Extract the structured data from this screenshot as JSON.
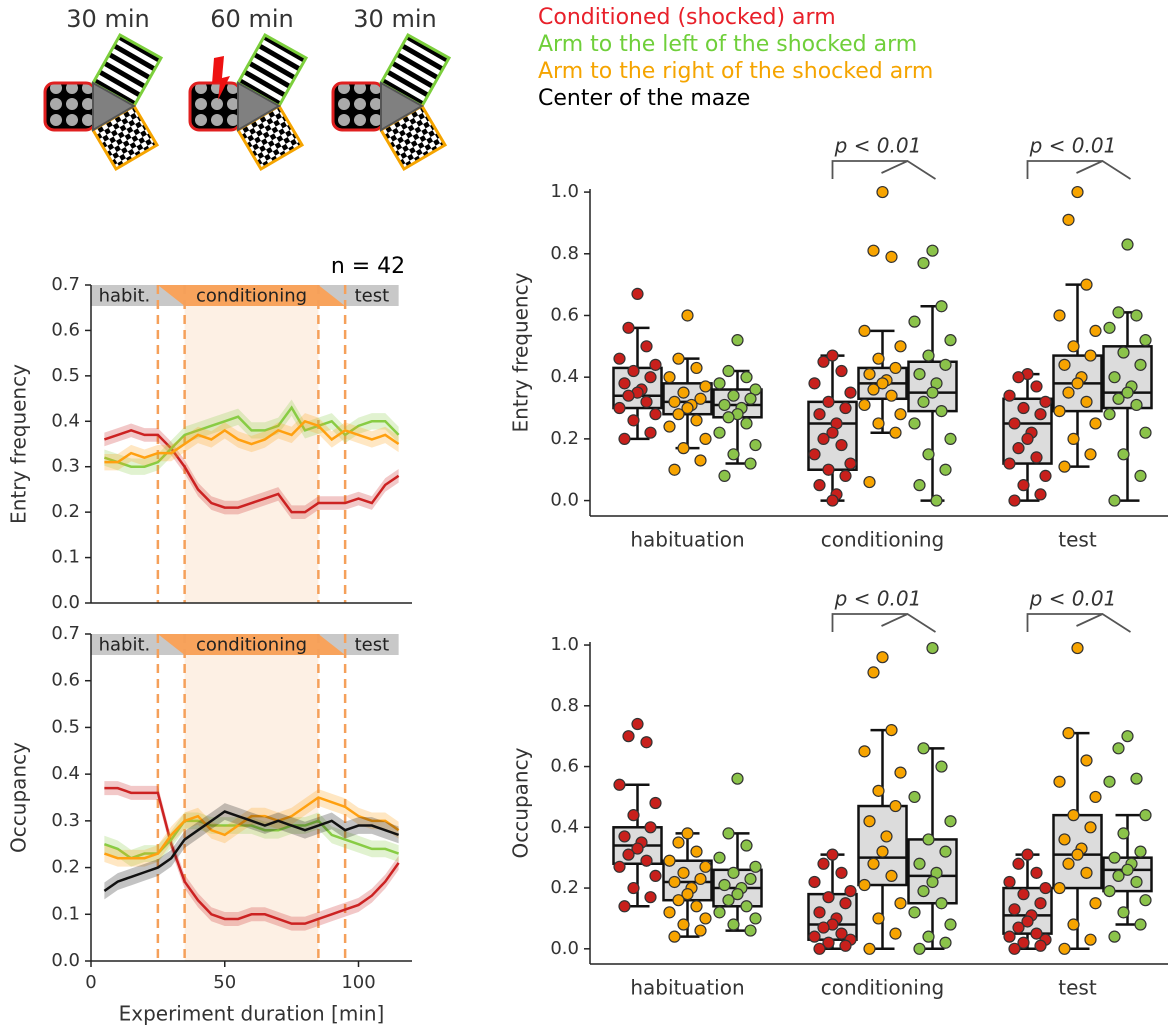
{
  "schematic": {
    "durations": [
      "30 min",
      "60 min",
      "30 min"
    ]
  },
  "legend": [
    {
      "label": "Conditioned (shocked) arm",
      "color": "#e8202a"
    },
    {
      "label": "Arm to the left of the shocked arm",
      "color": "#6fcf3a"
    },
    {
      "label": "Arm to the right of the shocked arm",
      "color": "#f5a400"
    },
    {
      "label": "Center of the maze",
      "color": "#000000"
    }
  ],
  "chart_data": [
    {
      "type": "line",
      "ylabel": "Entry frequency",
      "annotation": "n = 42",
      "phase_labels": [
        "habit.",
        "conditioning",
        "test"
      ],
      "boundaries": [
        25,
        35,
        85,
        95
      ],
      "x": [
        5,
        10,
        15,
        20,
        25,
        30,
        35,
        40,
        45,
        50,
        55,
        60,
        65,
        70,
        75,
        80,
        85,
        90,
        95,
        100,
        105,
        110,
        115
      ],
      "xlim": [
        0,
        120
      ],
      "ylim": [
        0,
        0.7
      ],
      "yticks": [
        {
          "value": 0,
          "label": "0.0"
        },
        0.1,
        0.2,
        0.3,
        0.4,
        0.5,
        0.6,
        0.7
      ],
      "series": [
        {
          "color": "#cc2222",
          "error": 0.015,
          "values": [
            0.36,
            0.37,
            0.38,
            0.37,
            0.37,
            0.34,
            0.3,
            0.25,
            0.22,
            0.21,
            0.21,
            0.22,
            0.23,
            0.24,
            0.2,
            0.2,
            0.22,
            0.22,
            0.22,
            0.23,
            0.22,
            0.26,
            0.28
          ]
        },
        {
          "color": "#88cc44",
          "error": 0.018,
          "values": [
            0.32,
            0.31,
            0.3,
            0.3,
            0.31,
            0.34,
            0.37,
            0.38,
            0.39,
            0.4,
            0.41,
            0.38,
            0.38,
            0.39,
            0.43,
            0.38,
            0.39,
            0.4,
            0.37,
            0.39,
            0.4,
            0.4,
            0.37
          ]
        },
        {
          "color": "#ffa010",
          "error": 0.018,
          "values": [
            0.31,
            0.31,
            0.33,
            0.32,
            0.33,
            0.33,
            0.35,
            0.37,
            0.36,
            0.38,
            0.36,
            0.35,
            0.36,
            0.38,
            0.37,
            0.4,
            0.39,
            0.36,
            0.38,
            0.37,
            0.36,
            0.37,
            0.35
          ]
        }
      ]
    },
    {
      "type": "line",
      "ylabel": "Occupancy",
      "xlabel": "Experiment duration [min]",
      "phase_labels": [
        "habit.",
        "conditioning",
        "test"
      ],
      "boundaries": [
        25,
        35,
        85,
        95
      ],
      "x": [
        5,
        10,
        15,
        20,
        25,
        30,
        35,
        40,
        45,
        50,
        55,
        60,
        65,
        70,
        75,
        80,
        85,
        90,
        95,
        100,
        105,
        110,
        115
      ],
      "xlim": [
        0,
        120
      ],
      "xticks": [
        0,
        50,
        100
      ],
      "ylim": [
        0,
        0.7
      ],
      "yticks": [
        {
          "value": 0,
          "label": "0.0"
        },
        0.1,
        0.2,
        0.3,
        0.4,
        0.5,
        0.6,
        0.7
      ],
      "series": [
        {
          "color": "#cc2222",
          "error": 0.015,
          "values": [
            0.37,
            0.37,
            0.36,
            0.36,
            0.36,
            0.25,
            0.17,
            0.13,
            0.1,
            0.09,
            0.09,
            0.1,
            0.1,
            0.09,
            0.08,
            0.08,
            0.09,
            0.1,
            0.11,
            0.12,
            0.14,
            0.17,
            0.21
          ]
        },
        {
          "color": "#88cc44",
          "error": 0.018,
          "values": [
            0.25,
            0.24,
            0.22,
            0.23,
            0.23,
            0.26,
            0.3,
            0.3,
            0.29,
            0.29,
            0.29,
            0.29,
            0.28,
            0.28,
            0.29,
            0.29,
            0.3,
            0.27,
            0.26,
            0.25,
            0.24,
            0.24,
            0.23
          ]
        },
        {
          "color": "#ffa010",
          "error": 0.018,
          "values": [
            0.23,
            0.22,
            0.22,
            0.22,
            0.23,
            0.27,
            0.3,
            0.31,
            0.28,
            0.27,
            0.29,
            0.31,
            0.31,
            0.3,
            0.31,
            0.33,
            0.35,
            0.34,
            0.33,
            0.31,
            0.3,
            0.3,
            0.28
          ]
        },
        {
          "color": "#111111",
          "error": 0.018,
          "values": [
            0.15,
            0.17,
            0.18,
            0.19,
            0.2,
            0.22,
            0.26,
            0.28,
            0.3,
            0.32,
            0.31,
            0.3,
            0.29,
            0.3,
            0.29,
            0.28,
            0.29,
            0.3,
            0.28,
            0.29,
            0.29,
            0.28,
            0.27
          ]
        }
      ]
    },
    {
      "type": "box",
      "ylabel": "Entry frequency",
      "categories": [
        "habituation",
        "conditioning",
        "test"
      ],
      "significance": [
        null,
        "p < 0.01",
        "p < 0.01"
      ],
      "ylim": [
        -0.05,
        1.01
      ],
      "yticks": [
        {
          "value": 0,
          "label": "0.0"
        },
        0.2,
        0.4,
        0.6,
        0.8,
        {
          "value": 1,
          "label": "1.0"
        }
      ],
      "series": [
        {
          "color": "#c8201c",
          "whislo": [
            0.2,
            0.0,
            0.0
          ],
          "q1": [
            0.3,
            0.1,
            0.12
          ],
          "med": [
            0.34,
            0.25,
            0.25
          ],
          "q3": [
            0.43,
            0.32,
            0.33
          ],
          "whishi": [
            0.56,
            0.47,
            0.41
          ],
          "points": [
            [
              0.67,
              0.56,
              0.5,
              0.46,
              0.44,
              0.42,
              0.4,
              0.38,
              0.36,
              0.35,
              0.34,
              0.32,
              0.3,
              0.28,
              0.26,
              0.22,
              0.2
            ],
            [
              0.47,
              0.45,
              0.42,
              0.38,
              0.35,
              0.32,
              0.3,
              0.28,
              0.25,
              0.22,
              0.2,
              0.18,
              0.15,
              0.12,
              0.1,
              0.08,
              0.05,
              0.02,
              0.0
            ],
            [
              0.41,
              0.4,
              0.37,
              0.34,
              0.32,
              0.3,
              0.28,
              0.25,
              0.22,
              0.2,
              0.17,
              0.14,
              0.12,
              0.08,
              0.05,
              0.02,
              0.0
            ]
          ]
        },
        {
          "color": "#f7a400",
          "whislo": [
            0.17,
            0.22,
            0.11
          ],
          "q1": [
            0.28,
            0.33,
            0.29
          ],
          "med": [
            0.32,
            0.38,
            0.38
          ],
          "q3": [
            0.38,
            0.43,
            0.47
          ],
          "whishi": [
            0.46,
            0.55,
            0.7
          ],
          "points": [
            [
              0.6,
              0.46,
              0.43,
              0.4,
              0.37,
              0.35,
              0.33,
              0.32,
              0.31,
              0.3,
              0.28,
              0.26,
              0.24,
              0.2,
              0.17,
              0.13,
              0.1
            ],
            [
              1.0,
              0.81,
              0.79,
              0.55,
              0.5,
              0.46,
              0.43,
              0.41,
              0.39,
              0.38,
              0.36,
              0.34,
              0.31,
              0.28,
              0.25,
              0.22,
              0.06
            ],
            [
              1.0,
              0.91,
              0.7,
              0.6,
              0.55,
              0.5,
              0.47,
              0.44,
              0.4,
              0.38,
              0.35,
              0.32,
              0.29,
              0.25,
              0.2,
              0.15,
              0.11
            ]
          ]
        },
        {
          "color": "#8bc34a",
          "whislo": [
            0.12,
            0.0,
            0.0
          ],
          "q1": [
            0.27,
            0.29,
            0.3
          ],
          "med": [
            0.31,
            0.35,
            0.35
          ],
          "q3": [
            0.36,
            0.45,
            0.5
          ],
          "whishi": [
            0.42,
            0.63,
            0.61
          ],
          "points": [
            [
              0.52,
              0.42,
              0.4,
              0.38,
              0.36,
              0.34,
              0.33,
              0.31,
              0.3,
              0.28,
              0.27,
              0.25,
              0.22,
              0.18,
              0.15,
              0.12,
              0.08
            ],
            [
              0.81,
              0.77,
              0.63,
              0.58,
              0.52,
              0.47,
              0.44,
              0.41,
              0.38,
              0.35,
              0.32,
              0.29,
              0.25,
              0.2,
              0.15,
              0.1,
              0.05,
              0.0
            ],
            [
              0.83,
              0.61,
              0.6,
              0.56,
              0.52,
              0.48,
              0.44,
              0.4,
              0.37,
              0.35,
              0.33,
              0.31,
              0.28,
              0.22,
              0.15,
              0.08,
              0.0
            ]
          ]
        }
      ]
    },
    {
      "type": "box",
      "ylabel": "Occupancy",
      "categories": [
        "habituation",
        "conditioning",
        "test"
      ],
      "significance": [
        null,
        "p < 0.01",
        "p < 0.01"
      ],
      "ylim": [
        -0.05,
        1.01
      ],
      "yticks": [
        {
          "value": 0,
          "label": "0.0"
        },
        0.2,
        0.4,
        0.6,
        0.8,
        {
          "value": 1,
          "label": "1.0"
        }
      ],
      "series": [
        {
          "color": "#c8201c",
          "whislo": [
            0.14,
            0.0,
            0.0
          ],
          "q1": [
            0.28,
            0.03,
            0.05
          ],
          "med": [
            0.34,
            0.08,
            0.11
          ],
          "q3": [
            0.4,
            0.18,
            0.2
          ],
          "whishi": [
            0.54,
            0.31,
            0.31
          ],
          "points": [
            [
              0.74,
              0.7,
              0.68,
              0.54,
              0.48,
              0.44,
              0.4,
              0.37,
              0.35,
              0.33,
              0.31,
              0.29,
              0.27,
              0.24,
              0.2,
              0.17,
              0.14
            ],
            [
              0.31,
              0.28,
              0.25,
              0.22,
              0.19,
              0.17,
              0.15,
              0.12,
              0.1,
              0.08,
              0.07,
              0.05,
              0.04,
              0.03,
              0.02,
              0.01,
              0.0
            ],
            [
              0.31,
              0.28,
              0.25,
              0.22,
              0.2,
              0.18,
              0.15,
              0.13,
              0.11,
              0.09,
              0.07,
              0.05,
              0.04,
              0.03,
              0.02,
              0.01,
              0.0
            ]
          ]
        },
        {
          "color": "#f7a400",
          "whislo": [
            0.04,
            0.0,
            0.0
          ],
          "q1": [
            0.16,
            0.21,
            0.2
          ],
          "med": [
            0.22,
            0.3,
            0.31
          ],
          "q3": [
            0.29,
            0.47,
            0.44
          ],
          "whishi": [
            0.38,
            0.72,
            0.71
          ],
          "points": [
            [
              0.38,
              0.35,
              0.32,
              0.29,
              0.27,
              0.25,
              0.23,
              0.22,
              0.2,
              0.18,
              0.16,
              0.14,
              0.12,
              0.1,
              0.08,
              0.06,
              0.04
            ],
            [
              0.96,
              0.91,
              0.72,
              0.65,
              0.58,
              0.52,
              0.47,
              0.42,
              0.37,
              0.32,
              0.28,
              0.24,
              0.21,
              0.15,
              0.1,
              0.05,
              0.0
            ],
            [
              0.99,
              0.71,
              0.62,
              0.55,
              0.5,
              0.44,
              0.4,
              0.36,
              0.33,
              0.31,
              0.28,
              0.25,
              0.2,
              0.15,
              0.08,
              0.03,
              0.0
            ]
          ]
        },
        {
          "color": "#8bc34a",
          "whislo": [
            0.06,
            0.0,
            0.08
          ],
          "q1": [
            0.14,
            0.15,
            0.19
          ],
          "med": [
            0.2,
            0.24,
            0.26
          ],
          "q3": [
            0.26,
            0.36,
            0.3
          ],
          "whishi": [
            0.38,
            0.66,
            0.44
          ],
          "points": [
            [
              0.56,
              0.38,
              0.34,
              0.3,
              0.27,
              0.25,
              0.23,
              0.21,
              0.2,
              0.18,
              0.16,
              0.14,
              0.12,
              0.1,
              0.08,
              0.06
            ],
            [
              0.99,
              0.66,
              0.6,
              0.5,
              0.42,
              0.36,
              0.32,
              0.28,
              0.25,
              0.22,
              0.19,
              0.15,
              0.12,
              0.08,
              0.04,
              0.02,
              0.0
            ],
            [
              0.7,
              0.66,
              0.56,
              0.55,
              0.44,
              0.38,
              0.32,
              0.3,
              0.28,
              0.26,
              0.24,
              0.22,
              0.19,
              0.16,
              0.12,
              0.08,
              0.04
            ]
          ]
        }
      ]
    }
  ]
}
